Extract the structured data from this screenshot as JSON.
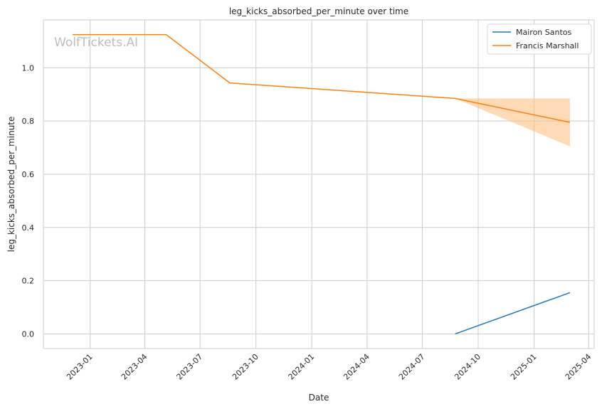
{
  "chart_data": {
    "type": "line",
    "title": "leg_kicks_absorbed_per_minute over time",
    "xlabel": "Date",
    "ylabel": "leg_kicks_absorbed_per_minute",
    "watermark": "WolfTickets.AI",
    "x_ticks": [
      "2023-01",
      "2023-04",
      "2023-07",
      "2023-10",
      "2024-01",
      "2024-04",
      "2024-07",
      "2024-10",
      "2025-01",
      "2025-04"
    ],
    "y_ticks": [
      "0.0",
      "0.2",
      "0.4",
      "0.6",
      "0.8",
      "1.0"
    ],
    "xlim": [
      "2022-10-16",
      "2025-04-10"
    ],
    "ylim": [
      -0.055,
      1.18
    ],
    "grid": true,
    "legend_position": "top-right",
    "series": [
      {
        "name": "Mairon Santos",
        "color": "#1f77b4",
        "x": [
          "2024-08-24",
          "2025-03-01"
        ],
        "y": [
          0.0,
          0.155
        ]
      },
      {
        "name": "Francis Marshall",
        "color": "#ff7f0e",
        "x": [
          "2022-12-03",
          "2023-05-06",
          "2023-08-19",
          "2024-08-24",
          "2025-03-01"
        ],
        "y": [
          1.125,
          1.125,
          0.943,
          0.885,
          0.795
        ],
        "band": {
          "x": [
            "2024-08-24",
            "2025-03-01"
          ],
          "lower": [
            0.885,
            0.705
          ],
          "upper": [
            0.885,
            0.885
          ],
          "color": "#ffbb78"
        }
      }
    ]
  }
}
